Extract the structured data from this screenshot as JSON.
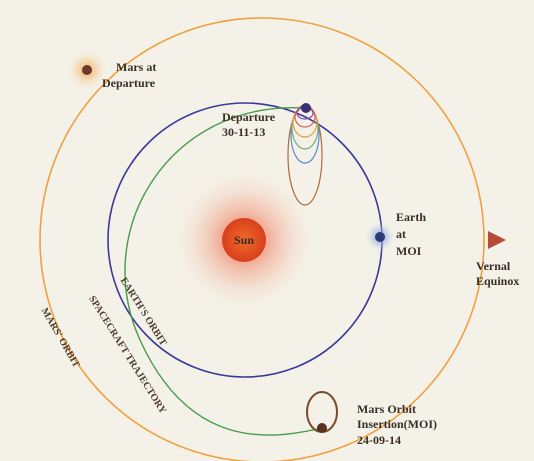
{
  "labels": {
    "mars_departure": [
      "Mars at",
      "Departure"
    ],
    "departure": [
      "Departure",
      "30-11-13"
    ],
    "earth_moi": [
      "Earth",
      "at",
      "MOI"
    ],
    "sun": "Sun",
    "vernal_equinox": [
      "Vernal",
      "Equinox"
    ],
    "moi": [
      "Mars Orbit",
      "Insertion(MOI)",
      "24-09-14"
    ],
    "earth_orbit": "EARTH'S ORBIT",
    "spacecraft_trajectory": "SPACECRAFT TRAJECTORY",
    "mars_orbit": "MARS' ORBIT"
  }
}
